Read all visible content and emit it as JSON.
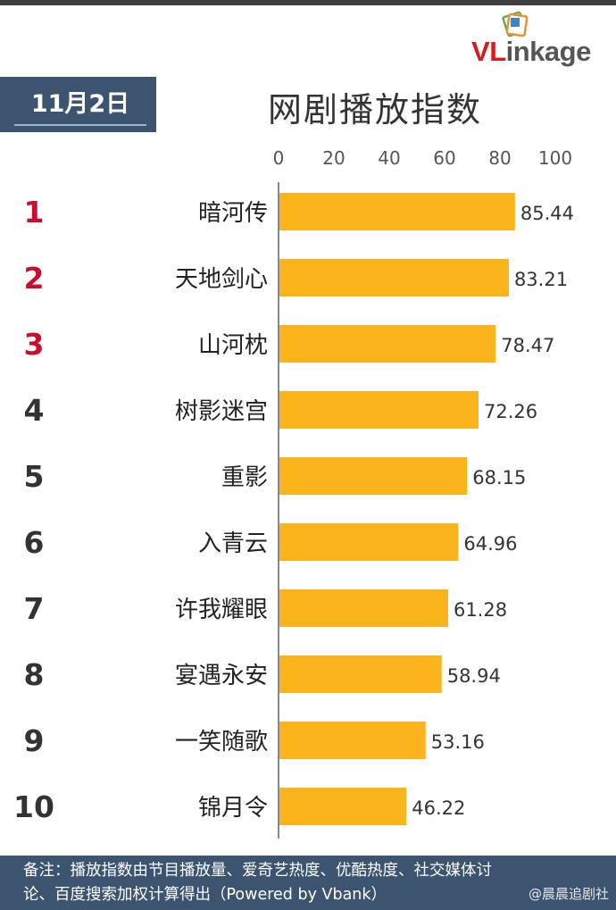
{
  "brand": {
    "logo_v": "V",
    "logo_l": "L",
    "logo_rest": "inkage",
    "accent": "#d71920"
  },
  "header": {
    "date": "11月2日",
    "title": "网剧播放指数"
  },
  "colors": {
    "bar": "#fbb41c",
    "rank_top": "#c8102e",
    "rank_other": "#333333",
    "band": "#3d5470"
  },
  "chart_data": {
    "type": "bar",
    "orientation": "horizontal",
    "title": "网剧播放指数",
    "xlim": [
      0,
      100
    ],
    "xticks": [
      0,
      20,
      40,
      60,
      80,
      100
    ],
    "grid": false,
    "ranks": [
      "1",
      "2",
      "3",
      "4",
      "5",
      "6",
      "7",
      "8",
      "9",
      "10"
    ],
    "categories": [
      "暗河传",
      "天地剑心",
      "山河枕",
      "树影迷宫",
      "重影",
      "入青云",
      "许我耀眼",
      "宴遇永安",
      "一笑随歌",
      "锦月令"
    ],
    "values": [
      85.44,
      83.21,
      78.47,
      72.26,
      68.15,
      64.96,
      61.28,
      58.94,
      53.16,
      46.22
    ],
    "value_labels": [
      "85.44",
      "83.21",
      "78.47",
      "72.26",
      "68.15",
      "64.96",
      "61.28",
      "58.94",
      "53.16",
      "46.22"
    ]
  },
  "footer": {
    "note_line1": "备注：播放指数由节目播放量、爱奇艺热度、优酷热度、社交媒体讨",
    "note_line2": "论、百度搜索加权计算得出（Powered by Vbank）",
    "watermark": "@晨晨追剧社"
  }
}
